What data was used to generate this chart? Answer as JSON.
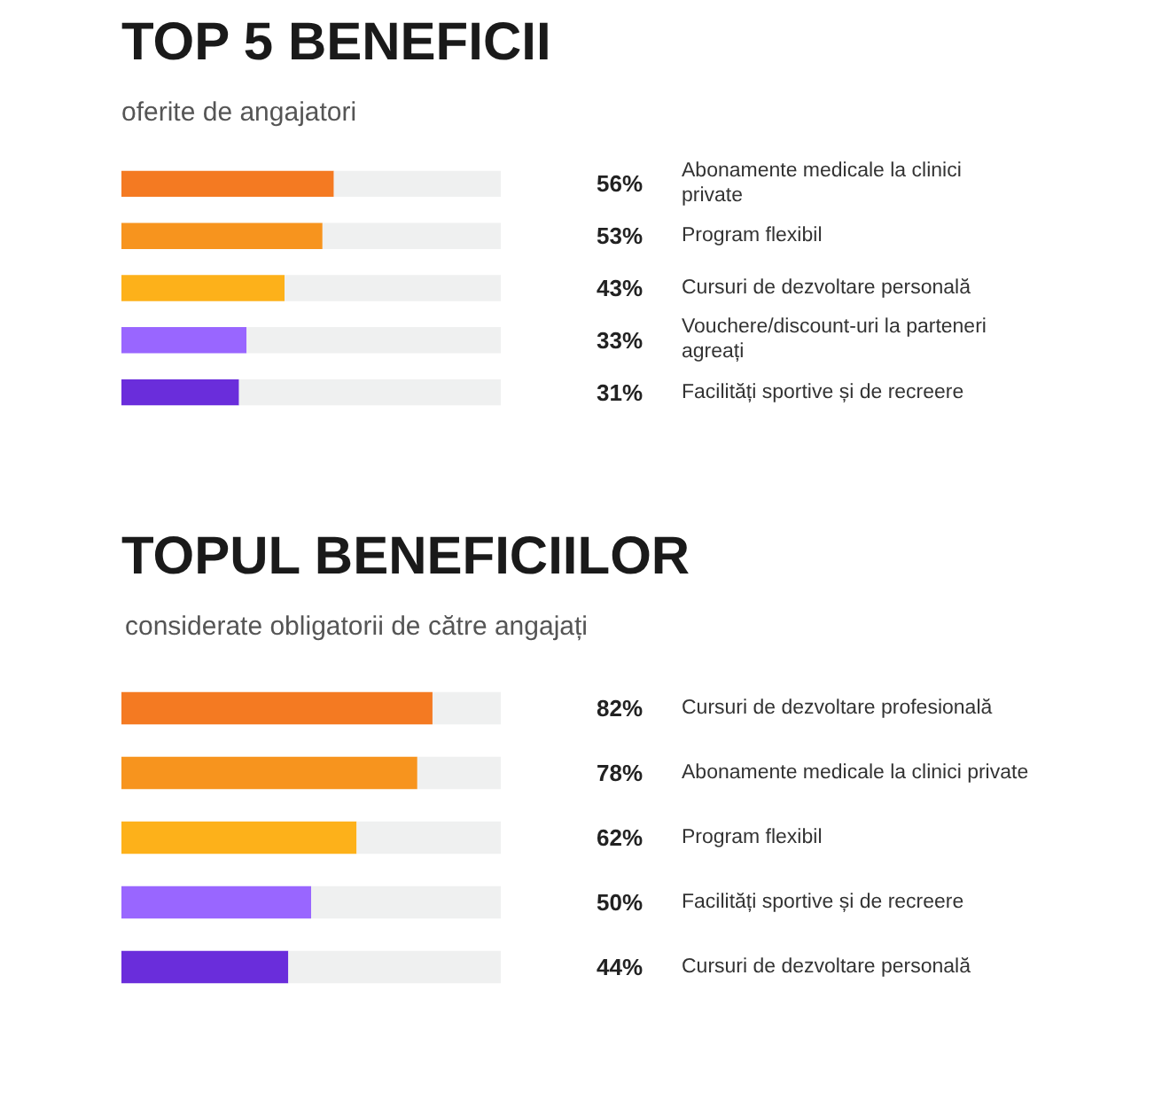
{
  "chart_data": [
    {
      "type": "bar",
      "orientation": "horizontal",
      "stacked": true,
      "title": "TOP 5 BENEFICII",
      "subtitle": "oferite de angajatori",
      "tick_labels": false,
      "grid": false,
      "categories": [
        "Abonamente medicale la clinici\nprivate",
        "Program flexibil",
        "Cursuri de dezvoltare personală",
        "Vouchere/discount-uri la parteneri\nagreați",
        "Facilități sportive și de recreere"
      ],
      "series": [
        {
          "colors": [
            "#f47a22",
            "#f7941e",
            "#fdb11a",
            "#9966ff",
            "#6a2ddb"
          ],
          "values": [
            56,
            53,
            43,
            33,
            31
          ],
          "value_labels": [
            "56%",
            "53%",
            "43%",
            "33%",
            "31%"
          ]
        },
        {
          "color": "#eff0f0",
          "values": [
            44,
            47,
            57,
            67,
            69
          ]
        }
      ]
    },
    {
      "type": "bar",
      "orientation": "horizontal",
      "stacked": true,
      "title": "TOPUL BENEFICIILOR",
      "subtitle": "considerate obligatorii de către angajați",
      "tick_labels": false,
      "grid": false,
      "categories": [
        "Cursuri de dezvoltare profesională",
        "Abonamente medicale la clinici private",
        "Program flexibil",
        "Facilități sportive și de recreere",
        "Cursuri de dezvoltare personală"
      ],
      "series": [
        {
          "colors": [
            "#f47a22",
            "#f7941e",
            "#fdb11a",
            "#9966ff",
            "#6a2ddb"
          ],
          "values": [
            82,
            78,
            62,
            50,
            44
          ],
          "value_labels": [
            "82%",
            "78%",
            "62%",
            "50%",
            "44%"
          ]
        },
        {
          "color": "#eff0f0",
          "values": [
            18,
            22,
            38,
            50,
            56
          ]
        }
      ]
    }
  ]
}
